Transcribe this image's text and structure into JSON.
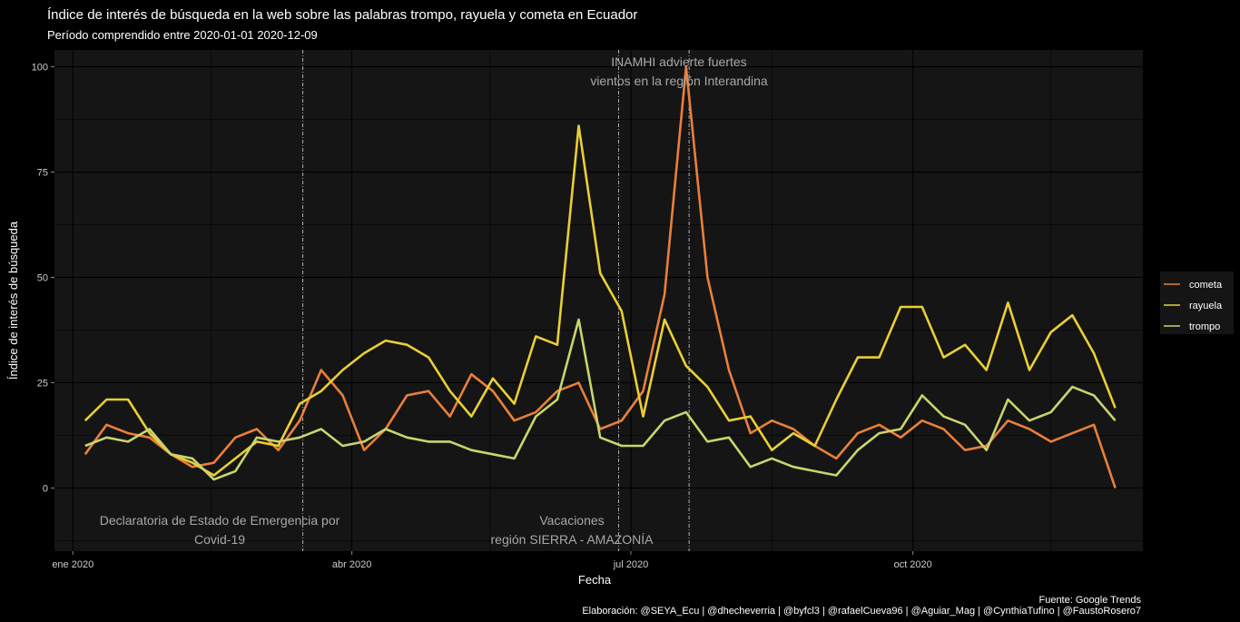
{
  "chart_data": {
    "type": "line",
    "title": "Índice de interés de búsqueda en la web sobre las palabras trompo, rayuela y cometa en Ecuador",
    "subtitle": "Período comprendido entre 2020-01-01 2020-12-09",
    "xlabel": "Fecha",
    "ylabel": "Índice de interés de búsqueda",
    "ylim": [
      -15,
      104
    ],
    "y_ticks": [
      "0",
      "25",
      "50",
      "75",
      "100"
    ],
    "x_ticks": [
      "ene 2020",
      "abr 2020",
      "jul 2020",
      "oct 2020"
    ],
    "grid": true,
    "legend_position": "right",
    "caption_source": "Fuente: Google Trends",
    "caption_credits": "Elaboración: @SEYA_Ecu | @dhecheverria | @byfcl3 | @rafaelCueva96 | @Aguiar_Mag | @CynthiaTufino | @FaustoRosero7",
    "x": [
      "2020-01-05",
      "2020-01-12",
      "2020-01-19",
      "2020-01-26",
      "2020-02-02",
      "2020-02-09",
      "2020-02-16",
      "2020-02-23",
      "2020-03-01",
      "2020-03-08",
      "2020-03-15",
      "2020-03-22",
      "2020-03-29",
      "2020-04-05",
      "2020-04-12",
      "2020-04-19",
      "2020-04-26",
      "2020-05-03",
      "2020-05-10",
      "2020-05-17",
      "2020-05-24",
      "2020-05-31",
      "2020-06-07",
      "2020-06-14",
      "2020-06-21",
      "2020-06-28",
      "2020-07-05",
      "2020-07-12",
      "2020-07-19",
      "2020-07-26",
      "2020-08-02",
      "2020-08-09",
      "2020-08-16",
      "2020-08-23",
      "2020-08-30",
      "2020-09-06",
      "2020-09-13",
      "2020-09-20",
      "2020-09-27",
      "2020-10-04",
      "2020-10-11",
      "2020-10-18",
      "2020-10-25",
      "2020-11-01",
      "2020-11-08",
      "2020-11-15",
      "2020-11-22",
      "2020-11-29",
      "2020-12-06"
    ],
    "series": [
      {
        "name": "cometa",
        "color": "#E8803A",
        "values": [
          8,
          15,
          13,
          12,
          8,
          5,
          6,
          12,
          14,
          9,
          16,
          28,
          22,
          9,
          14,
          22,
          23,
          17,
          27,
          23,
          16,
          18,
          23,
          25,
          14,
          16,
          23,
          46,
          100,
          50,
          28,
          13,
          16,
          14,
          10,
          7,
          13,
          15,
          12,
          16,
          14,
          9,
          10,
          16,
          14,
          11,
          13,
          15,
          0
        ]
      },
      {
        "name": "rayuela",
        "color": "#E9CF35",
        "values": [
          16,
          21,
          21,
          13,
          8,
          6,
          3,
          7,
          11,
          10,
          20,
          23,
          28,
          32,
          35,
          34,
          31,
          23,
          17,
          26,
          20,
          36,
          34,
          86,
          51,
          42,
          17,
          40,
          29,
          24,
          16,
          17,
          9,
          13,
          10,
          21,
          31,
          31,
          43,
          43,
          31,
          34,
          28,
          44,
          28,
          37,
          41,
          32,
          19
        ]
      },
      {
        "name": "trompo",
        "color": "#C9D46E",
        "values": [
          10,
          12,
          11,
          14,
          8,
          7,
          2,
          4,
          12,
          11,
          12,
          14,
          10,
          11,
          14,
          12,
          11,
          11,
          9,
          8,
          7,
          17,
          21,
          40,
          12,
          10,
          10,
          16,
          18,
          11,
          12,
          5,
          7,
          5,
          4,
          3,
          9,
          13,
          14,
          22,
          17,
          15,
          9,
          21,
          16,
          18,
          24,
          22,
          16
        ]
      }
    ],
    "vlines": [
      "2020-03-16",
      "2020-06-27",
      "2020-07-20"
    ],
    "annotations": [
      {
        "line1": "Declaratoria de Estado de Emergencia por",
        "line2": "Covid-19"
      },
      {
        "line1": "Vacaciones",
        "line2": "región SIERRA - AMAZONÍA"
      },
      {
        "line1": "INAMHI advierte fuertes",
        "line2": "vientos en la región Interandina"
      }
    ],
    "colors": {
      "background": "#000000",
      "panel": "#151515",
      "grid": "#000000",
      "text": "#FFFFFF",
      "annotation": "#A8A8A8",
      "vline": "#B0B0B0"
    }
  }
}
